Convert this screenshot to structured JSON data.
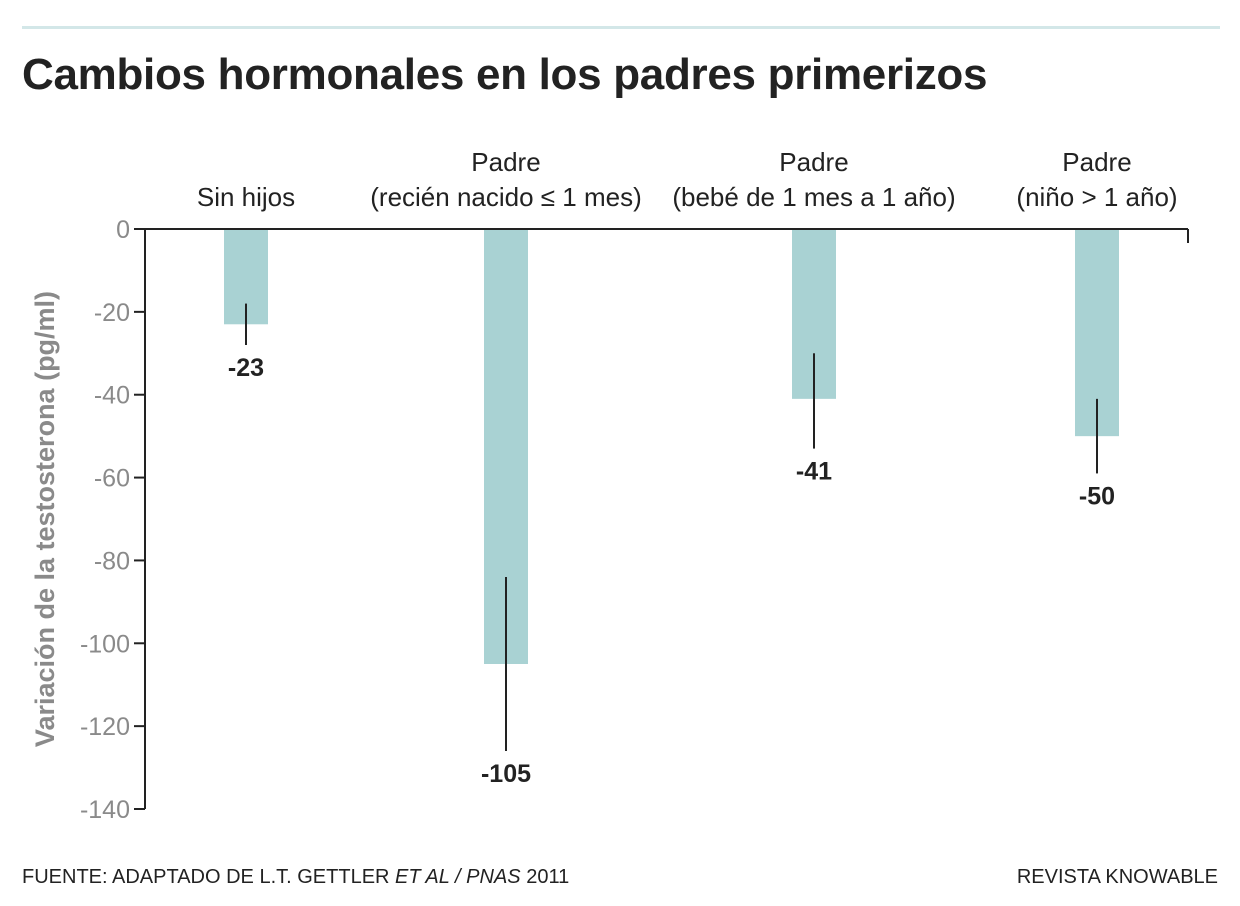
{
  "title": "Cambios hormonales en los padres primerizos",
  "source": {
    "prefix": "FUENTE: ADAPTADO DE L.T. GETTLER ",
    "italic": "ET AL / PNAS",
    "suffix": " 2011"
  },
  "brand": "REVISTA KNOWABLE",
  "colors": {
    "bar": "#a9d2d3",
    "axis": "#222222",
    "tick_label": "#8a8a8a",
    "title": "#222222",
    "rule": "#d3e7e8"
  },
  "chart_data": {
    "type": "bar",
    "title": "Cambios hormonales en los padres primerizos",
    "ylabel": "Variación de la testosterona (pg/ml)",
    "xlabel": "",
    "ylim": [
      -140,
      0
    ],
    "yticks": [
      0,
      -20,
      -40,
      -60,
      -80,
      -100,
      -120,
      -140
    ],
    "x_axis_position": "top",
    "categories": [
      [
        "Sin hijos"
      ],
      [
        "Padre",
        "(recién nacido ≤ 1 mes)"
      ],
      [
        "Padre",
        "(bebé de 1 mes a 1 año)"
      ],
      [
        "Padre",
        "(niño > 1 año)"
      ]
    ],
    "values": [
      -23,
      -105,
      -41,
      -50
    ],
    "error_bars": [
      [
        -18,
        -28
      ],
      [
        -84,
        -126
      ],
      [
        -30,
        -53
      ],
      [
        -41,
        -59
      ]
    ],
    "value_labels": [
      "-23",
      "-105",
      "-41",
      "-50"
    ],
    "grid": false,
    "legend": "none"
  }
}
